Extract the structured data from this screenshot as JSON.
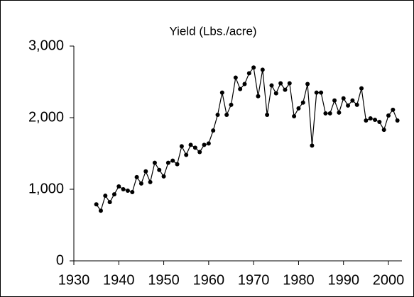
{
  "chart_data": {
    "type": "line",
    "title": "Yield (Lbs./acre)",
    "x": [
      1935,
      1936,
      1937,
      1938,
      1939,
      1940,
      1941,
      1942,
      1943,
      1944,
      1945,
      1946,
      1947,
      1948,
      1949,
      1950,
      1951,
      1952,
      1953,
      1954,
      1955,
      1956,
      1957,
      1958,
      1959,
      1960,
      1961,
      1962,
      1963,
      1964,
      1965,
      1966,
      1967,
      1968,
      1969,
      1970,
      1971,
      1972,
      1973,
      1974,
      1975,
      1976,
      1977,
      1978,
      1979,
      1980,
      1981,
      1982,
      1983,
      1984,
      1985,
      1986,
      1987,
      1988,
      1989,
      1990,
      1991,
      1992,
      1993,
      1994,
      1995,
      1996,
      1997,
      1998,
      1999,
      2000,
      2001,
      2002
    ],
    "series": [
      {
        "color": "#000000",
        "values": [
          790,
          700,
          910,
          820,
          930,
          1040,
          1000,
          980,
          960,
          1170,
          1080,
          1250,
          1100,
          1370,
          1270,
          1180,
          1370,
          1400,
          1350,
          1600,
          1480,
          1620,
          1580,
          1520,
          1620,
          1640,
          1820,
          2040,
          2350,
          2040,
          2180,
          2560,
          2400,
          2470,
          2620,
          2700,
          2300,
          2670,
          2040,
          2450,
          2340,
          2480,
          2390,
          2480,
          2020,
          2130,
          2210,
          2470,
          1610,
          2350,
          2350,
          2060,
          2060,
          2240,
          2070,
          2270,
          2170,
          2240,
          2180,
          2410,
          1960,
          1990,
          1970,
          1940,
          1830,
          2030,
          2110,
          1960
        ]
      }
    ],
    "xlim": [
      1930,
      2003
    ],
    "xticks": [
      1930,
      1940,
      1950,
      1960,
      1970,
      1980,
      1990,
      2000
    ],
    "ylim": [
      0,
      3000
    ],
    "yticks": [
      0,
      {
        "value": 1000,
        "label": "1,000"
      },
      {
        "value": 2000,
        "label": "2,000"
      },
      {
        "value": 3000,
        "label": "3,000"
      }
    ],
    "grid": false
  }
}
